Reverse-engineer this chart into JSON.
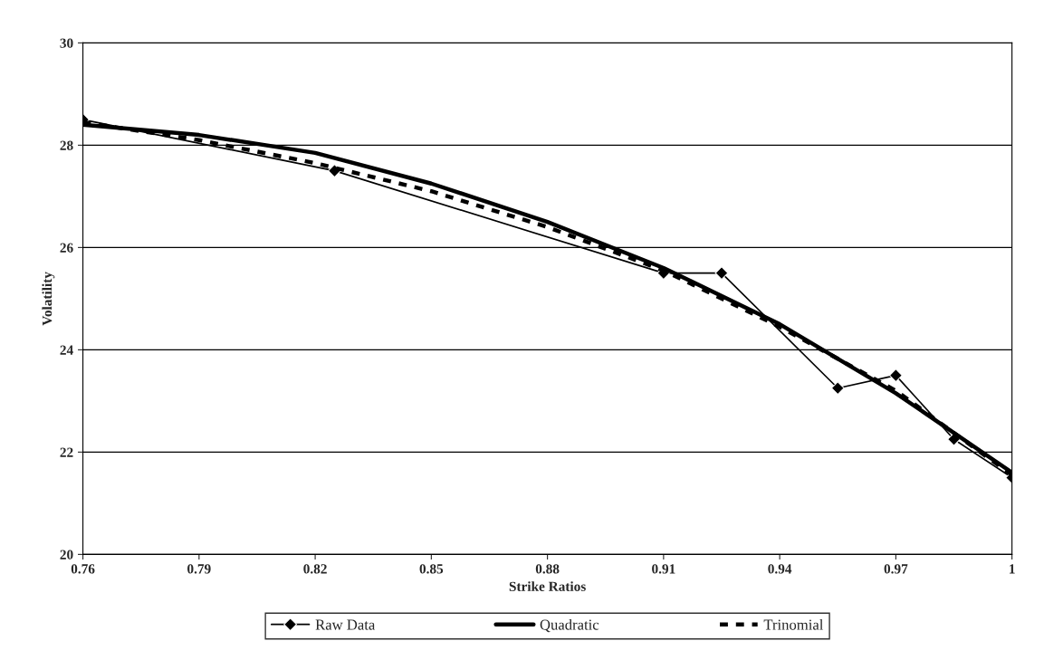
{
  "chart_data": {
    "type": "line",
    "xlabel": "Strike Ratios",
    "ylabel": "Volatility",
    "xlim": [
      0.76,
      1
    ],
    "xticks": [
      0.76,
      0.79,
      0.82,
      0.85,
      0.88,
      0.91,
      0.94,
      0.97,
      1
    ],
    "ylim": [
      20,
      30
    ],
    "yticks": [
      20,
      22,
      24,
      26,
      28,
      30
    ],
    "grid": "y",
    "legend": "bottom",
    "series": [
      {
        "name": "Raw Data",
        "color": "#000000",
        "marker": "diamond",
        "line_style": "solid",
        "x": [
          0.76,
          0.825,
          0.91,
          0.925,
          0.955,
          0.97,
          0.985,
          1.0
        ],
        "values": [
          28.5,
          27.5,
          25.5,
          25.5,
          23.25,
          23.5,
          22.25,
          21.5
        ]
      },
      {
        "name": "Quadratic",
        "color": "#000000",
        "marker": "none",
        "line_style": "solid",
        "x": [
          0.76,
          0.79,
          0.82,
          0.85,
          0.88,
          0.91,
          0.94,
          0.97,
          1.0
        ],
        "values": [
          28.4,
          28.2,
          27.85,
          27.25,
          26.5,
          25.6,
          24.5,
          23.15,
          21.6
        ]
      },
      {
        "name": "Trinomial",
        "color": "#000000",
        "marker": "none",
        "line_style": "dashed",
        "x": [
          0.76,
          0.79,
          0.82,
          0.85,
          0.88,
          0.91,
          0.94,
          0.97,
          1.0
        ],
        "values": [
          28.45,
          28.1,
          27.65,
          27.1,
          26.4,
          25.55,
          24.45,
          23.2,
          21.55
        ]
      }
    ]
  }
}
